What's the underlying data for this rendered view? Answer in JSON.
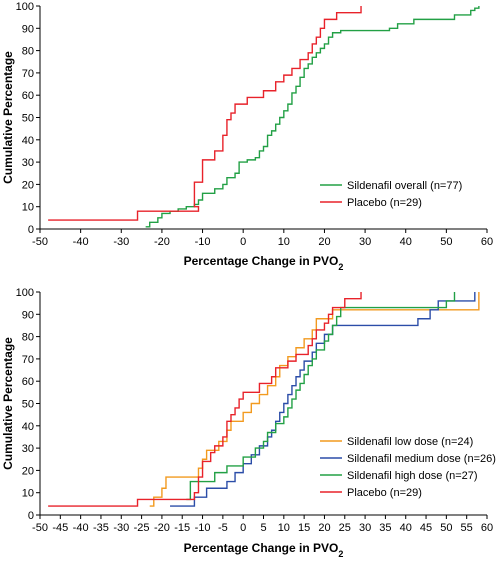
{
  "chart_data": [
    {
      "type": "line",
      "step": true,
      "xlabel": "Percentage Change in PVO",
      "xlabel_sub": "2",
      "ylabel": "Cumulative Percentage",
      "xlim": [
        -50,
        60
      ],
      "ylim": [
        0,
        100
      ],
      "xticks": [
        -50,
        -40,
        -30,
        -20,
        -10,
        0,
        10,
        20,
        30,
        40,
        50,
        60
      ],
      "yticks": [
        0,
        10,
        20,
        30,
        40,
        50,
        60,
        70,
        80,
        90,
        100
      ],
      "legend_position": "bottom-right",
      "series": [
        {
          "name": "Sildenafil overall (n=77)",
          "color": "#22a045",
          "points": [
            [
              -24,
              1
            ],
            [
              -23,
              3
            ],
            [
              -21,
              5
            ],
            [
              -20,
              7
            ],
            [
              -18,
              8
            ],
            [
              -16,
              9
            ],
            [
              -14,
              10
            ],
            [
              -12,
              11
            ],
            [
              -11,
              13
            ],
            [
              -10,
              16
            ],
            [
              -7,
              18
            ],
            [
              -5,
              20
            ],
            [
              -4,
              23
            ],
            [
              -2,
              25
            ],
            [
              -1,
              30
            ],
            [
              1,
              31
            ],
            [
              3,
              32
            ],
            [
              4,
              35
            ],
            [
              5,
              37
            ],
            [
              6,
              42
            ],
            [
              7,
              44
            ],
            [
              8,
              47
            ],
            [
              9,
              50
            ],
            [
              10,
              53
            ],
            [
              11,
              56
            ],
            [
              12,
              61
            ],
            [
              13,
              64
            ],
            [
              14,
              68
            ],
            [
              15,
              72
            ],
            [
              16,
              74
            ],
            [
              17,
              77
            ],
            [
              18,
              79
            ],
            [
              19,
              81
            ],
            [
              20,
              83
            ],
            [
              21,
              86
            ],
            [
              22,
              88
            ],
            [
              24,
              89
            ],
            [
              36,
              90
            ],
            [
              38,
              92
            ],
            [
              42,
              94
            ],
            [
              52,
              96
            ],
            [
              56,
              98
            ],
            [
              57,
              99
            ],
            [
              58,
              100
            ]
          ],
          "end_x": 58
        },
        {
          "name": "Placebo (n=29)",
          "color": "#e8222a",
          "points": [
            [
              -48,
              4
            ],
            [
              -26,
              8
            ],
            [
              -11,
              10
            ],
            [
              -12,
              21
            ],
            [
              -10,
              31
            ],
            [
              -7,
              35
            ],
            [
              -5,
              42
            ],
            [
              -4,
              49
            ],
            [
              -3,
              52
            ],
            [
              -2,
              56
            ],
            [
              1,
              59
            ],
            [
              5,
              62
            ],
            [
              8,
              66
            ],
            [
              10,
              69
            ],
            [
              12,
              72
            ],
            [
              14,
              76
            ],
            [
              16,
              79
            ],
            [
              17,
              83
            ],
            [
              18,
              86
            ],
            [
              19,
              90
            ],
            [
              20,
              94
            ],
            [
              23,
              97
            ],
            [
              29,
              100
            ]
          ],
          "end_x": 29
        }
      ]
    },
    {
      "type": "line",
      "step": true,
      "xlabel": "Percentage Change in PVO",
      "xlabel_sub": "2",
      "ylabel": "Cumulative Percentage",
      "xlim": [
        -50,
        60
      ],
      "ylim": [
        0,
        100
      ],
      "xticks": [
        -50,
        -45,
        -40,
        -35,
        -30,
        -25,
        -20,
        -15,
        -10,
        -5,
        0,
        5,
        10,
        15,
        20,
        25,
        30,
        35,
        40,
        45,
        50,
        55,
        60
      ],
      "yticks": [
        0,
        10,
        20,
        30,
        40,
        50,
        60,
        70,
        80,
        90,
        100
      ],
      "legend_position": "bottom-right",
      "series": [
        {
          "name": "Sildenafil low dose (n=24)",
          "color": "#f29a1f",
          "points": [
            [
              -23,
              4
            ],
            [
              -22,
              8
            ],
            [
              -20,
              12
            ],
            [
              -19,
              17
            ],
            [
              -11,
              21
            ],
            [
              -10,
              25
            ],
            [
              -9,
              29
            ],
            [
              -6,
              33
            ],
            [
              -4,
              38
            ],
            [
              -3,
              42
            ],
            [
              0,
              46
            ],
            [
              2,
              50
            ],
            [
              4,
              54
            ],
            [
              6,
              58
            ],
            [
              8,
              62
            ],
            [
              9,
              67
            ],
            [
              11,
              71
            ],
            [
              13,
              75
            ],
            [
              15,
              79
            ],
            [
              17,
              83
            ],
            [
              18,
              88
            ],
            [
              22,
              92
            ],
            [
              58,
              100
            ]
          ],
          "end_x": 58
        },
        {
          "name": "Sildenafil medium dose (n=26)",
          "color": "#2b4da8",
          "points": [
            [
              -18,
              4
            ],
            [
              -12,
              8
            ],
            [
              -9,
              12
            ],
            [
              -4,
              15
            ],
            [
              -2,
              19
            ],
            [
              0,
              23
            ],
            [
              2,
              27
            ],
            [
              4,
              31
            ],
            [
              6,
              35
            ],
            [
              7,
              38
            ],
            [
              8,
              42
            ],
            [
              9,
              46
            ],
            [
              10,
              50
            ],
            [
              11,
              54
            ],
            [
              12,
              58
            ],
            [
              13,
              62
            ],
            [
              14,
              65
            ],
            [
              15,
              69
            ],
            [
              17,
              73
            ],
            [
              18,
              77
            ],
            [
              20,
              81
            ],
            [
              22,
              85
            ],
            [
              43,
              88
            ],
            [
              46,
              92
            ],
            [
              48,
              96
            ],
            [
              57,
              100
            ]
          ],
          "end_x": 57
        },
        {
          "name": "Sildenafil high dose (n=27)",
          "color": "#22a045",
          "points": [
            [
              -14,
              7
            ],
            [
              -13,
              15
            ],
            [
              -7,
              19
            ],
            [
              -4,
              22
            ],
            [
              0,
              26
            ],
            [
              3,
              30
            ],
            [
              5,
              33
            ],
            [
              6,
              37
            ],
            [
              8,
              41
            ],
            [
              10,
              44
            ],
            [
              11,
              48
            ],
            [
              12,
              52
            ],
            [
              13,
              56
            ],
            [
              14,
              59
            ],
            [
              15,
              63
            ],
            [
              16,
              67
            ],
            [
              17,
              70
            ],
            [
              18,
              74
            ],
            [
              20,
              78
            ],
            [
              21,
              81
            ],
            [
              22,
              85
            ],
            [
              23,
              89
            ],
            [
              24,
              93
            ],
            [
              50,
              96
            ],
            [
              52,
              100
            ]
          ],
          "end_x": 52
        },
        {
          "name": "Placebo (n=29)",
          "color": "#e8222a",
          "points": [
            [
              -48,
              4
            ],
            [
              -26,
              7
            ],
            [
              -12,
              10
            ],
            [
              -11,
              17
            ],
            [
              -10,
              24
            ],
            [
              -8,
              28
            ],
            [
              -7,
              31
            ],
            [
              -5,
              35
            ],
            [
              -4,
              42
            ],
            [
              -3,
              45
            ],
            [
              -2,
              48
            ],
            [
              -1,
              52
            ],
            [
              0,
              55
            ],
            [
              4,
              59
            ],
            [
              7,
              62
            ],
            [
              8,
              66
            ],
            [
              11,
              69
            ],
            [
              13,
              72
            ],
            [
              16,
              76
            ],
            [
              17,
              79
            ],
            [
              18,
              83
            ],
            [
              20,
              86
            ],
            [
              21,
              90
            ],
            [
              22,
              93
            ],
            [
              25,
              97
            ],
            [
              29,
              100
            ]
          ],
          "end_x": 29
        }
      ]
    }
  ]
}
